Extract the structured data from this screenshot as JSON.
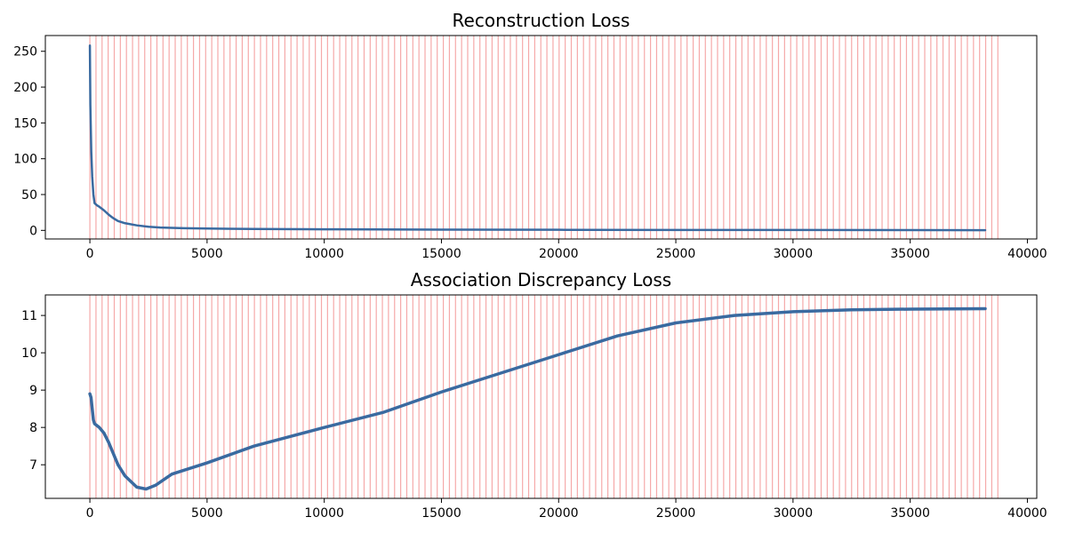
{
  "chart_data": [
    {
      "type": "line",
      "title": "Reconstruction Loss",
      "xlabel": "",
      "ylabel": "",
      "xlim": [
        -1900,
        40400
      ],
      "ylim": [
        -12,
        272
      ],
      "xticks": [
        0,
        5000,
        10000,
        15000,
        20000,
        25000,
        30000,
        35000,
        40000
      ],
      "xtick_labels": [
        "0",
        "5000",
        "10000",
        "15000",
        "20000",
        "25000",
        "30000",
        "35000",
        "40000"
      ],
      "yticks": [
        0,
        50,
        100,
        150,
        200,
        250
      ],
      "ytick_labels": [
        "0",
        "50",
        "100",
        "150",
        "200",
        "250"
      ],
      "grid": false,
      "legend": "none",
      "line_color": "#3a6aa0",
      "marker_color": "#f4a0a0",
      "vertical_markers": {
        "start": 0,
        "step": 260,
        "end": 38900
      },
      "series": [
        {
          "x": [
            0,
            20,
            60,
            100,
            150,
            200,
            300,
            400,
            600,
            800,
            1000,
            1200,
            1500,
            2000,
            2500,
            3000,
            4000,
            5000,
            7000,
            10000,
            15000,
            20000,
            25000,
            30000,
            35000,
            38200
          ],
          "y": [
            258,
            175,
            110,
            75,
            50,
            38,
            35,
            33,
            28,
            22,
            17,
            13,
            10,
            7,
            5,
            4,
            3,
            2.5,
            2,
            1.5,
            1,
            0.8,
            0.6,
            0.5,
            0.4,
            0.3
          ]
        }
      ]
    },
    {
      "type": "line",
      "title": "Association Discrepancy Loss",
      "xlabel": "",
      "ylabel": "",
      "xlim": [
        -1900,
        40400
      ],
      "ylim": [
        6.1,
        11.55
      ],
      "xticks": [
        0,
        5000,
        10000,
        15000,
        20000,
        25000,
        30000,
        35000,
        40000
      ],
      "xtick_labels": [
        "0",
        "5000",
        "10000",
        "15000",
        "20000",
        "25000",
        "30000",
        "35000",
        "40000"
      ],
      "yticks": [
        7,
        8,
        9,
        10,
        11
      ],
      "ytick_labels": [
        "7",
        "8",
        "9",
        "10",
        "11"
      ],
      "grid": false,
      "legend": "none",
      "line_color": "#3a6aa0",
      "marker_color": "#f4a0a0",
      "vertical_markers": {
        "start": 0,
        "step": 260,
        "end": 38900
      },
      "series": [
        {
          "x": [
            0,
            50,
            100,
            150,
            200,
            400,
            600,
            800,
            1000,
            1200,
            1500,
            2000,
            2400,
            2800,
            3500,
            5000,
            7000,
            10000,
            12500,
            15000,
            17500,
            20000,
            22500,
            25000,
            27500,
            30000,
            32500,
            35000,
            38200
          ],
          "y": [
            8.9,
            8.8,
            8.5,
            8.2,
            8.1,
            8.0,
            7.85,
            7.6,
            7.3,
            7.0,
            6.7,
            6.4,
            6.35,
            6.45,
            6.75,
            7.05,
            7.5,
            8.0,
            8.4,
            8.95,
            9.45,
            9.95,
            10.45,
            10.8,
            11.0,
            11.1,
            11.15,
            11.17,
            11.18
          ]
        }
      ]
    }
  ]
}
